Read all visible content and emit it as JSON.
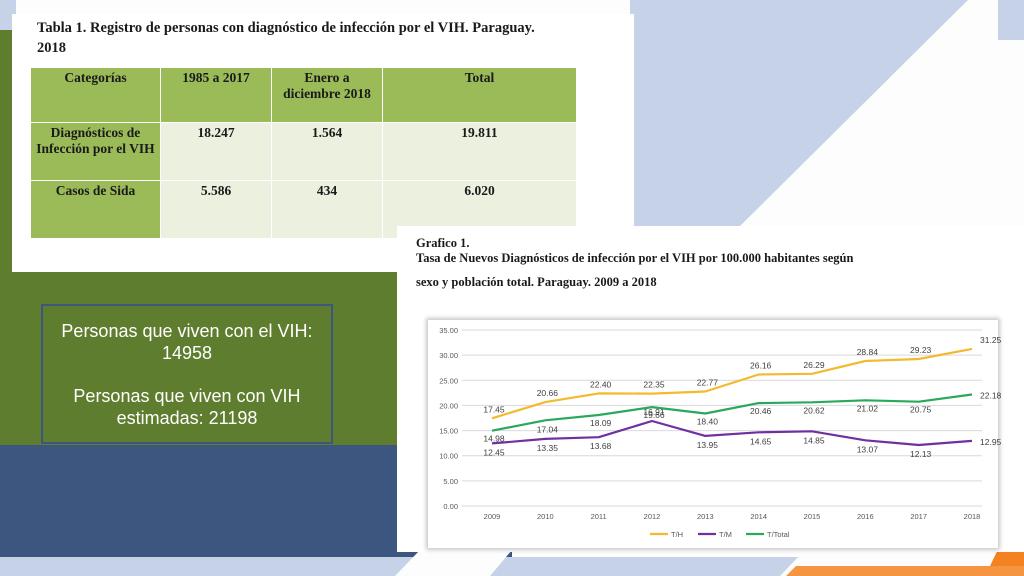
{
  "info_box": {
    "line1": "Personas que viven con el VIH: 14958",
    "line2": "Personas que viven con VIH estimadas: 21198"
  },
  "table": {
    "title_line1": "Tabla 1.    Registro de personas con diagnóstico de infección por el VIH. Paraguay.",
    "title_line2": "2018",
    "headers": [
      "Categorías",
      "1985 a 2017",
      "Enero a diciembre 2018",
      "Total"
    ],
    "rows": [
      [
        "Diagnósticos de Infección por el VIH",
        "18.247",
        "1.564",
        "19.811"
      ],
      [
        "Casos de Sida",
        "5.586",
        "434",
        "6.020"
      ]
    ]
  },
  "chart_header": {
    "label": "Grafico 1.",
    "title": "Tasa de Nuevos Diagnósticos de infección por el VIH por 100.000 habitantes según",
    "title_line2": "sexo y población total.  Paraguay. 2009 a 2018"
  },
  "colors": {
    "bg_light_blue": "#c5d2e8",
    "bg_navy": "#3c5680",
    "bg_green": "#5f7d2e",
    "accent_orange": "#f58220",
    "table_header": "#9bbb59",
    "table_cell": "#ebf1de",
    "series_h": "#f3b92f",
    "series_m": "#7030a0",
    "series_total": "#2aa85b"
  },
  "chart_data": {
    "type": "line",
    "title": "",
    "xlabel": "",
    "ylabel": "",
    "x": [
      "2009",
      "2010",
      "2011",
      "2012",
      "2013",
      "2014",
      "2015",
      "2016",
      "2017",
      "2018"
    ],
    "ylim": [
      0,
      35
    ],
    "yticks": [
      "0.00",
      "5.00",
      "10.00",
      "15.00",
      "20.00",
      "25.00",
      "30.00",
      "35.00"
    ],
    "grid": true,
    "legend": "bottom",
    "series": [
      {
        "name": "T/H",
        "color": "#f3b92f",
        "values": [
          17.45,
          20.66,
          22.4,
          22.35,
          22.77,
          26.16,
          26.29,
          28.84,
          29.23,
          31.25
        ],
        "labels": [
          "17.45",
          "20.66",
          "22.40",
          "22.35",
          "22.77",
          "26.16",
          "26.29",
          "28.84",
          "29.23",
          "31.25"
        ]
      },
      {
        "name": "T/M",
        "color": "#7030a0",
        "values": [
          12.45,
          13.35,
          13.68,
          16.91,
          13.95,
          14.65,
          14.85,
          13.07,
          12.13,
          12.95
        ],
        "labels": [
          "12.45",
          "13.35",
          "13.68",
          "16.91",
          "13.95",
          "14.65",
          "14.85",
          "13.07",
          "12.13",
          "12.95"
        ]
      },
      {
        "name": "T/Total",
        "color": "#2aa85b",
        "values": [
          14.98,
          17.04,
          18.09,
          19.66,
          18.4,
          20.46,
          20.62,
          21.02,
          20.75,
          22.18
        ],
        "labels": [
          "14.98",
          "17.04",
          "18.09",
          "19.66",
          "18.40",
          "20.46",
          "20.62",
          "21.02",
          "20.75",
          "22.18"
        ]
      }
    ]
  }
}
